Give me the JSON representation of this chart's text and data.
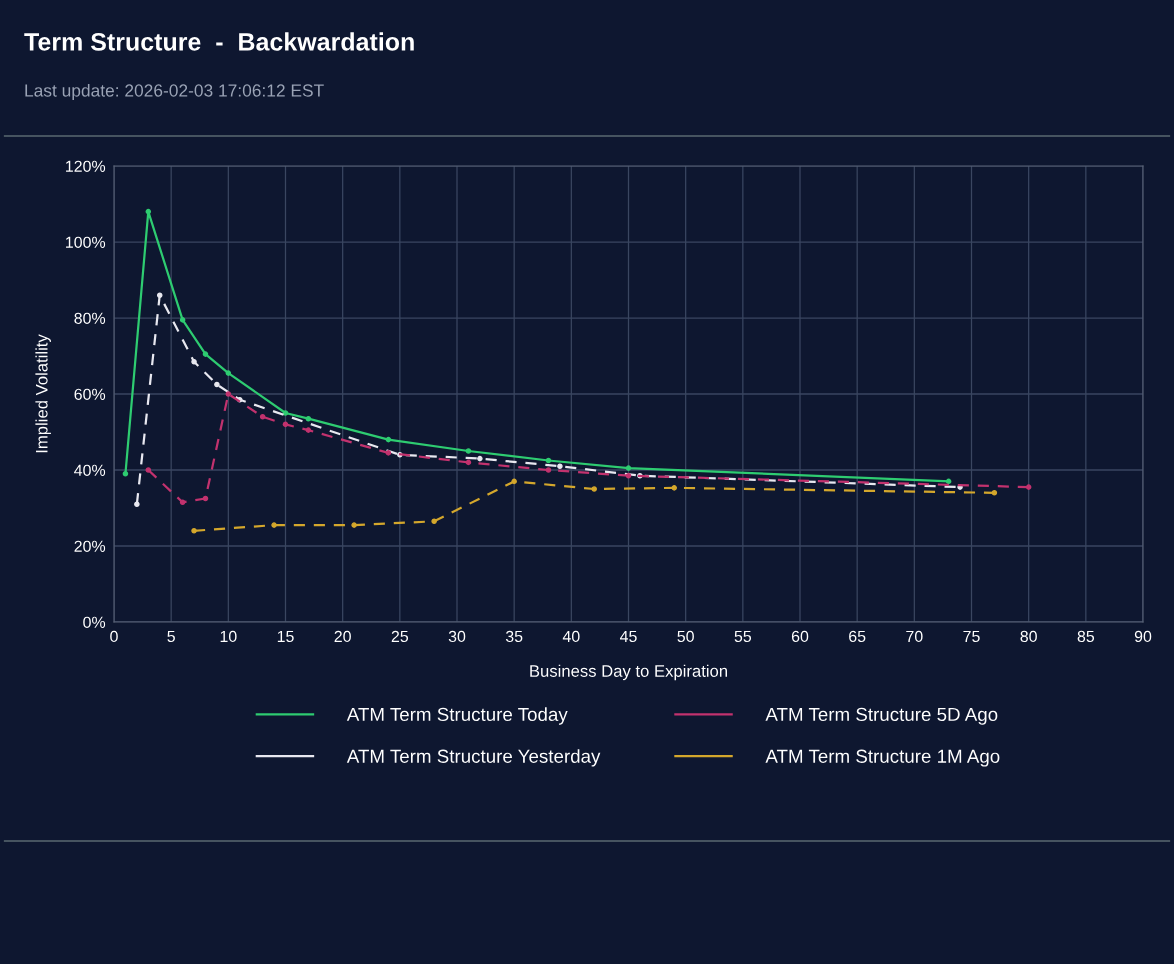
{
  "chart_data": {
    "type": "line",
    "title": "Term Structure  -  Backwardation",
    "subtitle": "Last update: 2026-02-03 17:06:12 EST",
    "xlabel": "Business Day to Expiration",
    "ylabel": "Implied Volatility",
    "xlim": [
      0,
      90
    ],
    "xticks": [
      0,
      5,
      10,
      15,
      20,
      25,
      30,
      35,
      40,
      45,
      50,
      55,
      60,
      65,
      70,
      75,
      80,
      85,
      90
    ],
    "ylim": [
      0,
      120
    ],
    "yticks": [
      {
        "value": 0,
        "label": "0%"
      },
      {
        "value": 20,
        "label": "20%"
      },
      {
        "value": 40,
        "label": "40%"
      },
      {
        "value": 60,
        "label": "60%"
      },
      {
        "value": 80,
        "label": "80%"
      },
      {
        "value": 100,
        "label": "100%"
      },
      {
        "value": 120,
        "label": "120%"
      }
    ],
    "grid": true,
    "legend": "bottom",
    "marker": "circle",
    "series": [
      {
        "name": "ATM Term Structure Today",
        "color": "#2ecc71",
        "line_style": "solid",
        "x": [
          1,
          3,
          6,
          8,
          10,
          15,
          17,
          24,
          31,
          38,
          45,
          73
        ],
        "values": [
          39,
          108,
          79.5,
          70.5,
          65.5,
          55,
          53.5,
          48,
          45,
          42.5,
          40.5,
          37
        ]
      },
      {
        "name": "ATM Term Structure Yesterday",
        "color": "#e8e8f0",
        "line_style": "dashed",
        "x": [
          2,
          4,
          7,
          9,
          11,
          25,
          32,
          39,
          46,
          74
        ],
        "values": [
          31,
          86,
          68.5,
          62.5,
          58.5,
          44,
          43,
          41,
          38.5,
          35.5
        ]
      },
      {
        "name": "ATM Term Structure 5D Ago",
        "color": "#c2326e",
        "line_style": "dashed",
        "x": [
          3,
          6,
          8,
          10,
          13,
          15,
          17,
          24,
          31,
          38,
          45,
          80
        ],
        "values": [
          40,
          31.5,
          32.5,
          60,
          54,
          52,
          50.5,
          44.5,
          42,
          40,
          38.5,
          35.5
        ]
      },
      {
        "name": "ATM Term Structure 1M Ago",
        "color": "#d4a72c",
        "line_style": "dashed",
        "x": [
          7,
          14,
          21,
          28,
          35,
          42,
          49,
          77
        ],
        "values": [
          24,
          25.5,
          25.5,
          26.5,
          37,
          35,
          35.3,
          34
        ]
      }
    ]
  }
}
